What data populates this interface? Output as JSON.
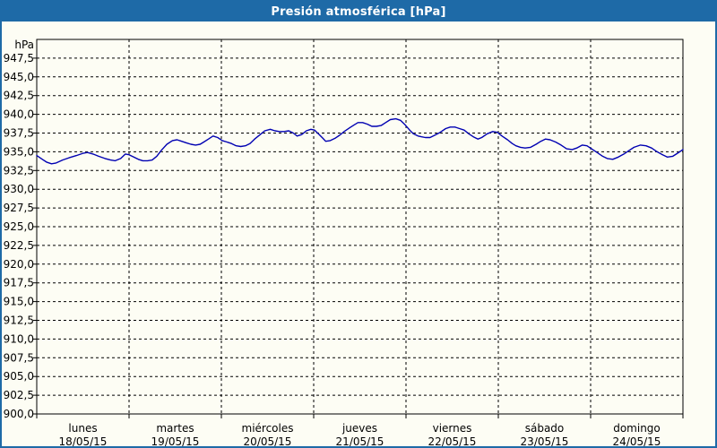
{
  "window": {
    "title": "Presión atmosférica [hPa]"
  },
  "colors": {
    "frame_blue": "#1e6aa7",
    "background_ivory": "#fdfdf4",
    "grid_color": "#000000",
    "axis_color": "#000000",
    "line_navy": "#0000b2",
    "text_color": "#000000"
  },
  "chart_data": {
    "type": "line",
    "title": "Presión atmosférica [hPa]",
    "unit_label": "hPa",
    "ylim": [
      900,
      950
    ],
    "y_step": 2.5,
    "grid": "dashed",
    "legend_position": "none",
    "y_tick_labels": [
      "900,0",
      "902,5",
      "905,0",
      "907,5",
      "910,0",
      "912,5",
      "915,0",
      "917,5",
      "920,0",
      "922,5",
      "925,0",
      "927,5",
      "930,0",
      "932,5",
      "935,0",
      "937,5",
      "940,0",
      "942,5",
      "945,0",
      "947,5"
    ],
    "x_days": [
      {
        "name": "lunes",
        "date": "18/05/15"
      },
      {
        "name": "martes",
        "date": "19/05/15"
      },
      {
        "name": "miércoles",
        "date": "20/05/15"
      },
      {
        "name": "jueves",
        "date": "21/05/15"
      },
      {
        "name": "viernes",
        "date": "22/05/15"
      },
      {
        "name": "sábado",
        "date": "23/05/15"
      },
      {
        "name": "domingo",
        "date": "24/05/15"
      }
    ],
    "series": [
      {
        "name": "Presión atmosférica",
        "points": [
          [
            0.0,
            934.5
          ],
          [
            0.06,
            934.0
          ],
          [
            0.11,
            933.6
          ],
          [
            0.16,
            933.4
          ],
          [
            0.21,
            933.5
          ],
          [
            0.28,
            933.9
          ],
          [
            0.35,
            934.2
          ],
          [
            0.43,
            934.5
          ],
          [
            0.5,
            934.8
          ],
          [
            0.55,
            934.9
          ],
          [
            0.61,
            934.7
          ],
          [
            0.67,
            934.4
          ],
          [
            0.74,
            934.1
          ],
          [
            0.8,
            933.9
          ],
          [
            0.85,
            933.8
          ],
          [
            0.91,
            934.1
          ],
          [
            0.96,
            934.7
          ],
          [
            1.0,
            934.6
          ],
          [
            1.05,
            934.3
          ],
          [
            1.1,
            934.0
          ],
          [
            1.15,
            933.8
          ],
          [
            1.2,
            933.8
          ],
          [
            1.25,
            933.9
          ],
          [
            1.3,
            934.4
          ],
          [
            1.35,
            935.2
          ],
          [
            1.41,
            936.0
          ],
          [
            1.47,
            936.5
          ],
          [
            1.52,
            936.6
          ],
          [
            1.57,
            936.4
          ],
          [
            1.62,
            936.2
          ],
          [
            1.67,
            936.0
          ],
          [
            1.72,
            935.9
          ],
          [
            1.77,
            936.0
          ],
          [
            1.81,
            936.3
          ],
          [
            1.86,
            936.7
          ],
          [
            1.91,
            937.1
          ],
          [
            1.96,
            936.9
          ],
          [
            2.01,
            936.5
          ],
          [
            2.06,
            936.3
          ],
          [
            2.11,
            936.1
          ],
          [
            2.16,
            935.8
          ],
          [
            2.21,
            935.7
          ],
          [
            2.26,
            935.8
          ],
          [
            2.31,
            936.1
          ],
          [
            2.36,
            936.7
          ],
          [
            2.42,
            937.3
          ],
          [
            2.47,
            937.8
          ],
          [
            2.53,
            938.0
          ],
          [
            2.58,
            937.8
          ],
          [
            2.63,
            937.7
          ],
          [
            2.68,
            937.7
          ],
          [
            2.73,
            937.8
          ],
          [
            2.78,
            937.5
          ],
          [
            2.82,
            937.1
          ],
          [
            2.87,
            937.3
          ],
          [
            2.92,
            937.8
          ],
          [
            2.97,
            938.0
          ],
          [
            3.01,
            937.9
          ],
          [
            3.06,
            937.3
          ],
          [
            3.1,
            936.8
          ],
          [
            3.13,
            936.4
          ],
          [
            3.18,
            936.5
          ],
          [
            3.23,
            936.8
          ],
          [
            3.28,
            937.2
          ],
          [
            3.33,
            937.7
          ],
          [
            3.39,
            938.2
          ],
          [
            3.44,
            938.6
          ],
          [
            3.48,
            938.9
          ],
          [
            3.53,
            938.9
          ],
          [
            3.58,
            938.7
          ],
          [
            3.63,
            938.4
          ],
          [
            3.68,
            938.4
          ],
          [
            3.73,
            938.5
          ],
          [
            3.78,
            938.9
          ],
          [
            3.83,
            939.3
          ],
          [
            3.89,
            939.4
          ],
          [
            3.94,
            939.2
          ],
          [
            3.99,
            938.6
          ],
          [
            4.04,
            937.9
          ],
          [
            4.08,
            937.4
          ],
          [
            4.13,
            937.1
          ],
          [
            4.17,
            937.0
          ],
          [
            4.21,
            936.9
          ],
          [
            4.26,
            936.9
          ],
          [
            4.31,
            937.2
          ],
          [
            4.37,
            937.6
          ],
          [
            4.43,
            938.1
          ],
          [
            4.48,
            938.3
          ],
          [
            4.53,
            938.3
          ],
          [
            4.58,
            938.1
          ],
          [
            4.63,
            937.9
          ],
          [
            4.68,
            937.4
          ],
          [
            4.73,
            937.0
          ],
          [
            4.78,
            936.7
          ],
          [
            4.82,
            936.9
          ],
          [
            4.88,
            937.4
          ],
          [
            4.94,
            937.7
          ],
          [
            4.99,
            937.6
          ],
          [
            5.04,
            937.1
          ],
          [
            5.1,
            936.6
          ],
          [
            5.15,
            936.1
          ],
          [
            5.19,
            935.8
          ],
          [
            5.24,
            935.6
          ],
          [
            5.29,
            935.5
          ],
          [
            5.35,
            935.6
          ],
          [
            5.41,
            936.0
          ],
          [
            5.46,
            936.4
          ],
          [
            5.51,
            936.7
          ],
          [
            5.56,
            936.6
          ],
          [
            5.62,
            936.3
          ],
          [
            5.68,
            935.9
          ],
          [
            5.74,
            935.4
          ],
          [
            5.8,
            935.3
          ],
          [
            5.85,
            935.5
          ],
          [
            5.91,
            935.9
          ],
          [
            5.96,
            935.8
          ],
          [
            6.01,
            935.4
          ],
          [
            6.07,
            934.9
          ],
          [
            6.13,
            934.4
          ],
          [
            6.18,
            934.1
          ],
          [
            6.24,
            934.0
          ],
          [
            6.3,
            934.3
          ],
          [
            6.36,
            934.7
          ],
          [
            6.42,
            935.2
          ],
          [
            6.47,
            935.6
          ],
          [
            6.54,
            935.9
          ],
          [
            6.6,
            935.8
          ],
          [
            6.66,
            935.5
          ],
          [
            6.72,
            935.0
          ],
          [
            6.78,
            934.6
          ],
          [
            6.83,
            934.3
          ],
          [
            6.89,
            934.4
          ],
          [
            6.94,
            934.8
          ],
          [
            7.0,
            935.3
          ]
        ]
      }
    ]
  }
}
